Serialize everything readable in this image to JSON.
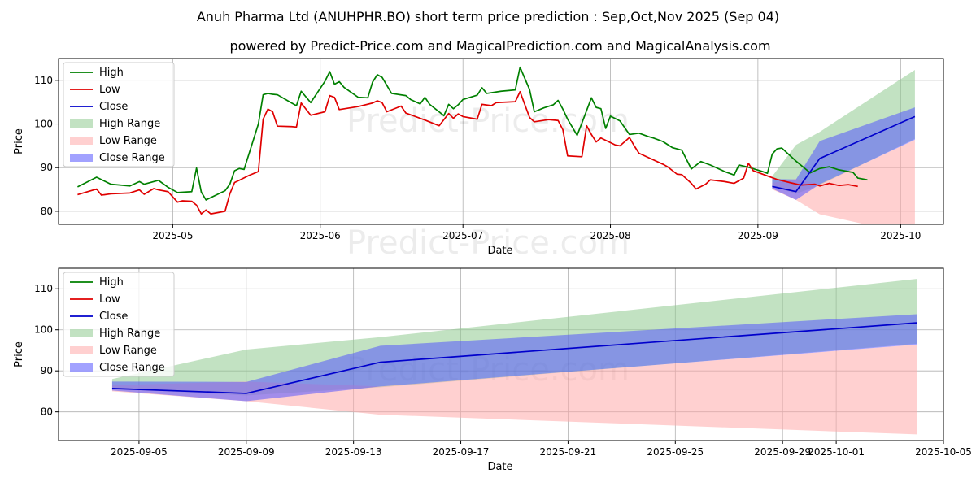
{
  "title": "Anuh Pharma Ltd (ANUHPHR.BO) short term price prediction : Sep,Oct,Nov 2025 (Sep 04)",
  "subtitle": "powered by Predict-Price.com and MagicalPrediction.com and MagicalAnalysis.com",
  "watermark": "Predict-Price.com",
  "colors": {
    "high": "#008000",
    "low": "#e00000",
    "close": "#0000cc",
    "high_range": "#8fca8f",
    "low_range": "#ffaaaa",
    "close_range": "#5555ff"
  },
  "chart_data": [
    {
      "type": "line",
      "xlabel": "Date",
      "ylabel": "Price",
      "ylim": [
        77,
        115
      ],
      "xlim": [
        "2025-04-07",
        "2025-10-10"
      ],
      "x_ticks": [
        "2025-05-01",
        "2025-06-01",
        "2025-07-01",
        "2025-08-01",
        "2025-09-01",
        "2025-10-01"
      ],
      "x_tick_labels": [
        "2025-05",
        "2025-06",
        "2025-07",
        "2025-08",
        "2025-09",
        "2025-10"
      ],
      "y_ticks": [
        80,
        90,
        100,
        110
      ],
      "grid": true,
      "legend": "upper-left",
      "legend_entries": [
        "High",
        "Low",
        "Close",
        "High Range",
        "Low Range",
        "Close Range"
      ],
      "series": [
        {
          "name": "High",
          "points": [
            [
              "2025-04-11",
              85.6
            ],
            [
              "2025-04-15",
              87.8
            ],
            [
              "2025-04-18",
              86.2
            ],
            [
              "2025-04-22",
              85.8
            ],
            [
              "2025-04-24",
              86.8
            ],
            [
              "2025-04-25",
              86.2
            ],
            [
              "2025-04-28",
              87.1
            ],
            [
              "2025-04-30",
              85.5
            ],
            [
              "2025-05-02",
              84.3
            ],
            [
              "2025-05-05",
              84.5
            ],
            [
              "2025-05-06",
              89.9
            ],
            [
              "2025-05-07",
              84.4
            ],
            [
              "2025-05-08",
              82.6
            ],
            [
              "2025-05-12",
              84.7
            ],
            [
              "2025-05-13",
              86.2
            ],
            [
              "2025-05-14",
              89.3
            ],
            [
              "2025-05-15",
              89.8
            ],
            [
              "2025-05-16",
              89.6
            ],
            [
              "2025-05-19",
              100.0
            ],
            [
              "2025-05-20",
              106.7
            ],
            [
              "2025-05-21",
              107.0
            ],
            [
              "2025-05-22",
              106.8
            ],
            [
              "2025-05-23",
              106.7
            ],
            [
              "2025-05-26",
              104.8
            ],
            [
              "2025-05-27",
              104.2
            ],
            [
              "2025-05-28",
              107.5
            ],
            [
              "2025-05-30",
              104.9
            ],
            [
              "2025-06-02",
              109.8
            ],
            [
              "2025-06-03",
              112.0
            ],
            [
              "2025-06-04",
              109.1
            ],
            [
              "2025-06-05",
              109.7
            ],
            [
              "2025-06-06",
              108.4
            ],
            [
              "2025-06-09",
              106.1
            ],
            [
              "2025-06-11",
              106.0
            ],
            [
              "2025-06-12",
              109.6
            ],
            [
              "2025-06-13",
              111.3
            ],
            [
              "2025-06-14",
              110.7
            ],
            [
              "2025-06-16",
              107.0
            ],
            [
              "2025-06-19",
              106.5
            ],
            [
              "2025-06-20",
              105.6
            ],
            [
              "2025-06-22",
              104.6
            ],
            [
              "2025-06-23",
              106.1
            ],
            [
              "2025-06-24",
              104.5
            ],
            [
              "2025-06-27",
              101.9
            ],
            [
              "2025-06-28",
              104.5
            ],
            [
              "2025-06-29",
              103.5
            ],
            [
              "2025-06-30",
              104.4
            ],
            [
              "2025-07-01",
              105.6
            ],
            [
              "2025-07-04",
              106.6
            ],
            [
              "2025-07-05",
              108.3
            ],
            [
              "2025-07-06",
              107.0
            ],
            [
              "2025-07-09",
              107.5
            ],
            [
              "2025-07-12",
              107.8
            ],
            [
              "2025-07-13",
              113.0
            ],
            [
              "2025-07-15",
              107.9
            ],
            [
              "2025-07-16",
              102.8
            ],
            [
              "2025-07-18",
              103.7
            ],
            [
              "2025-07-20",
              104.4
            ],
            [
              "2025-07-21",
              105.4
            ],
            [
              "2025-07-22",
              103.4
            ],
            [
              "2025-07-23",
              101.1
            ],
            [
              "2025-07-25",
              97.4
            ],
            [
              "2025-07-26",
              100.2
            ],
            [
              "2025-07-28",
              106.0
            ],
            [
              "2025-07-29",
              103.8
            ],
            [
              "2025-07-30",
              103.5
            ],
            [
              "2025-07-31",
              99.0
            ],
            [
              "2025-08-01",
              101.8
            ],
            [
              "2025-08-03",
              100.7
            ],
            [
              "2025-08-05",
              97.6
            ],
            [
              "2025-08-07",
              97.9
            ],
            [
              "2025-08-09",
              97.1
            ],
            [
              "2025-08-10",
              96.8
            ],
            [
              "2025-08-12",
              96.0
            ],
            [
              "2025-08-14",
              94.6
            ],
            [
              "2025-08-16",
              94.0
            ],
            [
              "2025-08-18",
              89.7
            ],
            [
              "2025-08-20",
              91.4
            ],
            [
              "2025-08-22",
              90.6
            ],
            [
              "2025-08-25",
              89.1
            ],
            [
              "2025-08-27",
              88.3
            ],
            [
              "2025-08-28",
              90.6
            ],
            [
              "2025-08-30",
              90.1
            ],
            [
              "2025-09-02",
              89.1
            ],
            [
              "2025-09-03",
              88.7
            ],
            [
              "2025-09-04",
              93.1
            ],
            [
              "2025-09-05",
              94.3
            ],
            [
              "2025-09-06",
              94.5
            ],
            [
              "2025-09-09",
              91.5
            ],
            [
              "2025-09-12",
              88.8
            ],
            [
              "2025-09-14",
              89.8
            ],
            [
              "2025-09-16",
              90.2
            ],
            [
              "2025-09-18",
              89.5
            ],
            [
              "2025-09-21",
              88.9
            ],
            [
              "2025-09-22",
              87.6
            ],
            [
              "2025-09-24",
              87.2
            ]
          ]
        },
        {
          "name": "Low",
          "points": [
            [
              "2025-04-11",
              83.8
            ],
            [
              "2025-04-15",
              85.1
            ],
            [
              "2025-04-16",
              83.7
            ],
            [
              "2025-04-18",
              84.0
            ],
            [
              "2025-04-22",
              84.2
            ],
            [
              "2025-04-24",
              84.9
            ],
            [
              "2025-04-25",
              83.9
            ],
            [
              "2025-04-27",
              85.2
            ],
            [
              "2025-04-28",
              84.9
            ],
            [
              "2025-04-30",
              84.5
            ],
            [
              "2025-05-02",
              82.1
            ],
            [
              "2025-05-03",
              82.4
            ],
            [
              "2025-05-05",
              82.3
            ],
            [
              "2025-05-06",
              81.4
            ],
            [
              "2025-05-07",
              79.4
            ],
            [
              "2025-05-08",
              80.3
            ],
            [
              "2025-05-09",
              79.4
            ],
            [
              "2025-05-12",
              80.0
            ],
            [
              "2025-05-13",
              84.0
            ],
            [
              "2025-05-14",
              86.6
            ],
            [
              "2025-05-15",
              87.1
            ],
            [
              "2025-05-17",
              88.2
            ],
            [
              "2025-05-19",
              89.1
            ],
            [
              "2025-05-20",
              101.1
            ],
            [
              "2025-05-21",
              103.4
            ],
            [
              "2025-05-22",
              102.8
            ],
            [
              "2025-05-23",
              99.5
            ],
            [
              "2025-05-26",
              99.4
            ],
            [
              "2025-05-27",
              99.3
            ],
            [
              "2025-05-28",
              104.8
            ],
            [
              "2025-05-30",
              102.0
            ],
            [
              "2025-06-02",
              102.8
            ],
            [
              "2025-06-03",
              106.5
            ],
            [
              "2025-06-04",
              106.1
            ],
            [
              "2025-06-05",
              103.3
            ],
            [
              "2025-06-09",
              104.0
            ],
            [
              "2025-06-12",
              104.8
            ],
            [
              "2025-06-13",
              105.3
            ],
            [
              "2025-06-14",
              104.9
            ],
            [
              "2025-06-15",
              102.8
            ],
            [
              "2025-06-18",
              104.1
            ],
            [
              "2025-06-19",
              102.5
            ],
            [
              "2025-06-23",
              100.9
            ],
            [
              "2025-06-26",
              99.6
            ],
            [
              "2025-06-28",
              102.4
            ],
            [
              "2025-06-29",
              101.3
            ],
            [
              "2025-06-30",
              102.3
            ],
            [
              "2025-07-01",
              101.7
            ],
            [
              "2025-07-04",
              101.1
            ],
            [
              "2025-07-05",
              104.5
            ],
            [
              "2025-07-07",
              104.2
            ],
            [
              "2025-07-08",
              104.9
            ],
            [
              "2025-07-12",
              105.1
            ],
            [
              "2025-07-13",
              107.4
            ],
            [
              "2025-07-15",
              101.5
            ],
            [
              "2025-07-16",
              100.5
            ],
            [
              "2025-07-19",
              101.0
            ],
            [
              "2025-07-21",
              100.8
            ],
            [
              "2025-07-22",
              98.7
            ],
            [
              "2025-07-23",
              92.7
            ],
            [
              "2025-07-26",
              92.5
            ],
            [
              "2025-07-27",
              99.6
            ],
            [
              "2025-07-28",
              97.6
            ],
            [
              "2025-07-29",
              95.9
            ],
            [
              "2025-07-30",
              96.8
            ],
            [
              "2025-08-02",
              95.2
            ],
            [
              "2025-08-03",
              95.0
            ],
            [
              "2025-08-05",
              96.9
            ],
            [
              "2025-08-06",
              95.0
            ],
            [
              "2025-08-07",
              93.3
            ],
            [
              "2025-08-09",
              92.3
            ],
            [
              "2025-08-12",
              90.8
            ],
            [
              "2025-08-13",
              90.2
            ],
            [
              "2025-08-15",
              88.5
            ],
            [
              "2025-08-16",
              88.4
            ],
            [
              "2025-08-18",
              86.4
            ],
            [
              "2025-08-19",
              85.1
            ],
            [
              "2025-08-21",
              86.2
            ],
            [
              "2025-08-22",
              87.2
            ],
            [
              "2025-08-25",
              86.8
            ],
            [
              "2025-08-27",
              86.4
            ],
            [
              "2025-08-29",
              87.6
            ],
            [
              "2025-08-30",
              91.0
            ],
            [
              "2025-08-31",
              89.3
            ],
            [
              "2025-09-03",
              88.1
            ],
            [
              "2025-09-05",
              87.3
            ],
            [
              "2025-09-08",
              86.5
            ],
            [
              "2025-09-10",
              86.0
            ],
            [
              "2025-09-13",
              86.2
            ],
            [
              "2025-09-14",
              85.8
            ],
            [
              "2025-09-16",
              86.4
            ],
            [
              "2025-09-18",
              85.9
            ],
            [
              "2025-09-20",
              86.1
            ],
            [
              "2025-09-22",
              85.7
            ]
          ]
        }
      ],
      "prediction": {
        "dates": [
          "2025-09-04",
          "2025-09-09",
          "2025-09-14",
          "2025-10-04"
        ],
        "close": [
          85.7,
          84.5,
          92.1,
          101.7
        ],
        "high_range": [
          [
            85.7,
            88.0
          ],
          [
            84.0,
            95.2
          ],
          [
            86.0,
            98.2
          ],
          [
            96.6,
            112.4
          ]
        ],
        "low_range": [
          [
            85.0,
            86.5
          ],
          [
            82.6,
            87.4
          ],
          [
            79.3,
            86.2
          ],
          [
            74.5,
            96.4
          ]
        ],
        "close_range": [
          [
            85.2,
            87.4
          ],
          [
            82.6,
            87.3
          ],
          [
            86.2,
            96.1
          ],
          [
            96.4,
            103.8
          ]
        ]
      }
    },
    {
      "type": "line",
      "xlabel": "Date",
      "ylabel": "Price",
      "ylim": [
        73,
        115
      ],
      "xlim": [
        "2025-09-02",
        "2025-10-05"
      ],
      "x_ticks": [
        "2025-09-05",
        "2025-09-09",
        "2025-09-13",
        "2025-09-17",
        "2025-09-21",
        "2025-09-25",
        "2025-09-29",
        "2025-10-01",
        "2025-10-05"
      ],
      "x_tick_labels": [
        "2025-09-05",
        "2025-09-09",
        "2025-09-13",
        "2025-09-17",
        "2025-09-21",
        "2025-09-25",
        "2025-09-29",
        "2025-10-01",
        "2025-10-05"
      ],
      "y_ticks": [
        80,
        90,
        100,
        110
      ],
      "grid": true,
      "legend": "upper-left",
      "legend_entries": [
        "High",
        "Low",
        "Close",
        "High Range",
        "Low Range",
        "Close Range"
      ],
      "prediction": {
        "dates": [
          "2025-09-04",
          "2025-09-09",
          "2025-09-14",
          "2025-10-04"
        ],
        "close": [
          85.7,
          84.5,
          92.1,
          101.7
        ],
        "high_range": [
          [
            85.7,
            88.0
          ],
          [
            84.0,
            95.2
          ],
          [
            86.0,
            98.2
          ],
          [
            96.6,
            112.4
          ]
        ],
        "low_range": [
          [
            85.0,
            86.5
          ],
          [
            82.6,
            87.4
          ],
          [
            79.3,
            86.2
          ],
          [
            74.5,
            96.4
          ]
        ],
        "close_range": [
          [
            85.2,
            87.4
          ],
          [
            82.6,
            87.3
          ],
          [
            86.2,
            96.1
          ],
          [
            96.4,
            103.8
          ]
        ]
      }
    }
  ]
}
